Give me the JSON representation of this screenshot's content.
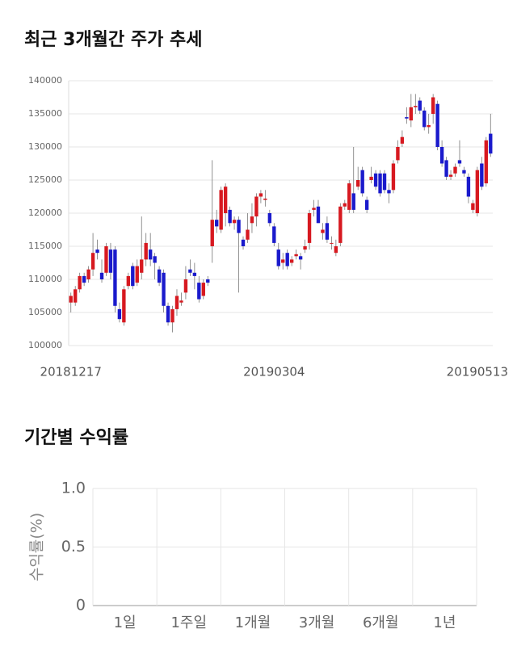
{
  "chart_data": [
    {
      "type": "candlestick",
      "title": "최근 3개월간 주가 추세",
      "categories": [
        "20181217",
        null,
        null,
        null,
        null,
        null,
        null,
        null,
        null,
        null,
        null,
        null,
        null,
        null,
        null,
        null,
        null,
        null,
        null,
        null,
        null,
        null,
        null,
        null,
        null,
        null,
        null,
        null,
        null,
        null,
        null,
        null,
        null,
        null,
        null,
        null,
        null,
        null,
        null,
        null,
        null,
        null,
        null,
        null,
        null,
        null,
        "20190304",
        null,
        null,
        null,
        null,
        null,
        null,
        null,
        null,
        null,
        null,
        null,
        null,
        null,
        null,
        null,
        null,
        null,
        null,
        null,
        null,
        null,
        null,
        null,
        null,
        null,
        null,
        null,
        null,
        null,
        null,
        null,
        null,
        null,
        null,
        null,
        null,
        null,
        null,
        null,
        null,
        null,
        null,
        null,
        null,
        null,
        "20190513",
        null,
        null,
        null
      ],
      "open": [
        106500,
        106500,
        108500,
        110500,
        110000,
        111500,
        114500,
        111000,
        111000,
        114500,
        114500,
        105500,
        103500,
        109000,
        112000,
        109500,
        111000,
        113000,
        114500,
        113500,
        111500,
        111000,
        106000,
        103500,
        105500,
        106500,
        108000,
        111500,
        111000,
        109500,
        107500,
        110000,
        115000,
        119000,
        117500,
        120000,
        120500,
        118500,
        119000,
        116000,
        116000,
        118500,
        119500,
        122500,
        122000,
        120000,
        118000,
        114500,
        112500,
        114000,
        112500,
        113500,
        113500,
        114500,
        115500,
        120500,
        121000,
        117000,
        118500,
        115500,
        114000,
        115500,
        121000,
        120500,
        123000,
        124000,
        126500,
        122000,
        125000,
        126000,
        126000,
        126000,
        123500,
        123500,
        128000,
        130500,
        134500,
        134000,
        136000,
        137000,
        135500,
        133000,
        135000,
        136500,
        130000,
        128000,
        125500,
        126000,
        128000,
        126500,
        125500,
        120500,
        120000,
        127500,
        124500,
        132000
      ],
      "high": [
        108000,
        109000,
        111000,
        111000,
        112000,
        117000,
        116000,
        113000,
        115500,
        115500,
        115000,
        106500,
        109000,
        111000,
        112500,
        113000,
        119500,
        117000,
        117000,
        114000,
        112000,
        111500,
        106500,
        106000,
        108500,
        108000,
        112000,
        113000,
        112500,
        110500,
        110000,
        110500,
        128000,
        120500,
        124000,
        124500,
        121000,
        119500,
        119500,
        116500,
        120000,
        121500,
        123000,
        123500,
        123500,
        120500,
        118500,
        115500,
        114000,
        114500,
        113500,
        114500,
        114000,
        116000,
        120500,
        122000,
        122000,
        118500,
        119500,
        116500,
        116000,
        121500,
        122000,
        125000,
        130000,
        127000,
        127000,
        122500,
        127000,
        126500,
        126500,
        126500,
        124500,
        128000,
        131000,
        132500,
        136000,
        138000,
        138000,
        137500,
        136000,
        135000,
        138000,
        137000,
        131000,
        128500,
        126500,
        127500,
        131000,
        127000,
        126000,
        122000,
        127000,
        128500,
        131500,
        135000
      ],
      "low": [
        105000,
        106000,
        108000,
        109000,
        109500,
        110500,
        113000,
        109500,
        110500,
        110000,
        105000,
        103500,
        103000,
        108500,
        108500,
        109000,
        110000,
        112000,
        112000,
        110000,
        109000,
        105000,
        103000,
        102000,
        104500,
        106000,
        107000,
        110500,
        108500,
        106500,
        107000,
        109000,
        112500,
        117000,
        117000,
        118000,
        118000,
        117500,
        108000,
        114500,
        115500,
        117000,
        118000,
        121500,
        121000,
        118000,
        115000,
        111500,
        111500,
        111500,
        112000,
        113000,
        111500,
        114000,
        114500,
        119500,
        118500,
        116000,
        115500,
        114500,
        113500,
        115000,
        120500,
        120000,
        120000,
        123500,
        122500,
        120000,
        124500,
        123500,
        122500,
        123000,
        121500,
        123000,
        127500,
        130000,
        133500,
        133000,
        135000,
        135000,
        132500,
        132000,
        133500,
        129500,
        127000,
        125000,
        125000,
        125500,
        127000,
        125500,
        121500,
        120000,
        119500,
        123500,
        124000,
        128500
      ],
      "close": [
        107500,
        108500,
        110500,
        109500,
        111500,
        114000,
        114000,
        110000,
        115000,
        111000,
        106000,
        104000,
        108500,
        110500,
        109000,
        112000,
        113000,
        115500,
        113000,
        112500,
        109500,
        106000,
        103500,
        105500,
        107500,
        106800,
        110000,
        111000,
        110500,
        107000,
        109500,
        109500,
        119000,
        118000,
        123500,
        124000,
        118500,
        119000,
        117000,
        115000,
        117500,
        119500,
        122500,
        123000,
        122200,
        118500,
        115500,
        112000,
        113000,
        112000,
        113000,
        113800,
        113000,
        115000,
        120000,
        120800,
        118500,
        117500,
        116000,
        115500,
        115000,
        121000,
        121500,
        124500,
        120500,
        125000,
        123000,
        120500,
        125500,
        124000,
        123000,
        123500,
        123000,
        127500,
        130000,
        131500,
        134300,
        136000,
        136200,
        135500,
        133000,
        133300,
        137500,
        130000,
        127500,
        125500,
        125800,
        127000,
        127500,
        126000,
        122500,
        121500,
        126500,
        124000,
        131000,
        129000
      ],
      "up_color": "#d71920",
      "down_color": "#1a1acc",
      "ylim": [
        100000,
        140000
      ],
      "yticks": [
        100000,
        105000,
        110000,
        115000,
        120000,
        125000,
        130000,
        135000,
        140000
      ],
      "grid": true
    },
    {
      "type": "bar",
      "title": "기간별 수익률",
      "ylabel": "수익률(%)",
      "categories": [
        "1일",
        "1주일",
        "1개월",
        "3개월",
        "6개월",
        "1년"
      ],
      "ylim": [
        0,
        1
      ],
      "yticks": [
        0,
        0.5,
        {
          "value": 1,
          "label": "1.0"
        }
      ],
      "grid": true
    }
  ]
}
